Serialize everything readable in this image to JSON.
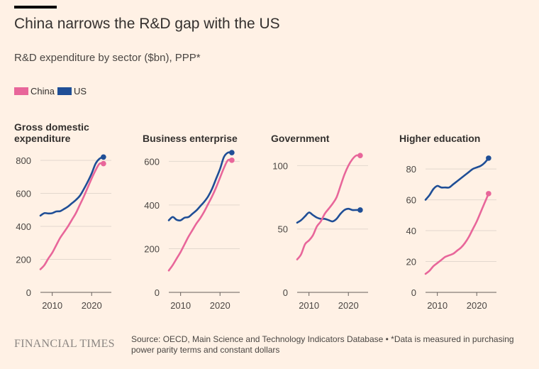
{
  "header": {
    "title": "China narrows the R&D gap with the US",
    "subtitle": "R&D expenditure by sector ($bn), PPP*"
  },
  "legend": [
    {
      "label": "China",
      "color": "#E8669A"
    },
    {
      "label": "US",
      "color": "#1F4E96"
    }
  ],
  "footer": {
    "logo": "FINANCIAL TIMES",
    "source": "Source: OECD, Main Science and Technology Indicators Database • *Data is measured in purchasing power parity terms and constant dollars"
  },
  "chart_data": [
    {
      "type": "line",
      "title": "Gross domestic expenditure",
      "title_lines": [
        "Gross domestic",
        "expenditure"
      ],
      "ylim": [
        0,
        860
      ],
      "yticks": [
        0,
        200,
        400,
        600,
        800
      ],
      "xlim": [
        2007,
        2025
      ],
      "xticks": [
        2010,
        2020
      ],
      "series": [
        {
          "name": "China",
          "color": "#E8669A",
          "x": [
            2007,
            2008,
            2009,
            2010,
            2011,
            2012,
            2013,
            2014,
            2015,
            2016,
            2017,
            2018,
            2019,
            2020,
            2021,
            2022,
            2023
          ],
          "values": [
            140,
            165,
            205,
            240,
            285,
            330,
            365,
            400,
            440,
            480,
            530,
            580,
            635,
            690,
            740,
            780,
            780
          ]
        },
        {
          "name": "US",
          "color": "#1F4E96",
          "x": [
            2007,
            2008,
            2009,
            2010,
            2011,
            2012,
            2013,
            2014,
            2015,
            2016,
            2017,
            2018,
            2019,
            2020,
            2021,
            2022,
            2023
          ],
          "values": [
            465,
            480,
            478,
            480,
            490,
            492,
            505,
            520,
            540,
            560,
            585,
            625,
            670,
            720,
            780,
            810,
            820
          ]
        }
      ]
    },
    {
      "type": "line",
      "title": "Business enterprise",
      "title_lines": [
        "Business enterprise"
      ],
      "ylim": [
        0,
        650
      ],
      "yticks": [
        0,
        200,
        400,
        600
      ],
      "xlim": [
        2007,
        2025
      ],
      "xticks": [
        2010,
        2020
      ],
      "series": [
        {
          "name": "China",
          "color": "#E8669A",
          "x": [
            2007,
            2008,
            2009,
            2010,
            2011,
            2012,
            2013,
            2014,
            2015,
            2016,
            2017,
            2018,
            2019,
            2020,
            2021,
            2022,
            2023
          ],
          "values": [
            100,
            125,
            155,
            185,
            220,
            255,
            285,
            315,
            340,
            370,
            405,
            440,
            480,
            525,
            570,
            605,
            605
          ]
        },
        {
          "name": "US",
          "color": "#1F4E96",
          "x": [
            2007,
            2008,
            2009,
            2010,
            2011,
            2012,
            2013,
            2014,
            2015,
            2016,
            2017,
            2018,
            2019,
            2020,
            2021,
            2022,
            2023
          ],
          "values": [
            330,
            345,
            332,
            330,
            342,
            345,
            360,
            375,
            395,
            415,
            440,
            475,
            520,
            565,
            620,
            640,
            640
          ]
        }
      ]
    },
    {
      "type": "line",
      "title": "Government",
      "title_lines": [
        "Government"
      ],
      "ylim": [
        0,
        112
      ],
      "yticks": [
        0,
        50,
        100
      ],
      "xlim": [
        2007,
        2025
      ],
      "xticks": [
        2010,
        2020
      ],
      "series": [
        {
          "name": "China",
          "color": "#E8669A",
          "x": [
            2007,
            2008,
            2009,
            2010,
            2011,
            2012,
            2013,
            2014,
            2015,
            2016,
            2017,
            2018,
            2019,
            2020,
            2021,
            2022,
            2023
          ],
          "values": [
            26,
            30,
            38,
            41,
            45,
            52,
            56,
            62,
            66,
            70,
            75,
            84,
            93,
            100,
            105,
            108,
            108
          ]
        },
        {
          "name": "US",
          "color": "#1F4E96",
          "x": [
            2007,
            2008,
            2009,
            2010,
            2011,
            2012,
            2013,
            2014,
            2015,
            2016,
            2017,
            2018,
            2019,
            2020,
            2021,
            2022,
            2023
          ],
          "values": [
            55,
            57,
            60,
            63,
            61,
            59,
            58,
            58,
            57,
            56,
            58,
            62,
            65,
            66,
            65,
            65,
            65
          ]
        }
      ]
    },
    {
      "type": "line",
      "title": "Higher education",
      "title_lines": [
        "Higher education"
      ],
      "ylim": [
        0,
        92
      ],
      "yticks": [
        0,
        20,
        40,
        60,
        80
      ],
      "xlim": [
        2007,
        2025
      ],
      "xticks": [
        2010,
        2020
      ],
      "series": [
        {
          "name": "China",
          "color": "#E8669A",
          "x": [
            2007,
            2008,
            2009,
            2010,
            2011,
            2012,
            2013,
            2014,
            2015,
            2016,
            2017,
            2018,
            2019,
            2020,
            2021,
            2022,
            2023
          ],
          "values": [
            12,
            14,
            17,
            19,
            21,
            23,
            24,
            25,
            27,
            29,
            32,
            36,
            41,
            46,
            52,
            58,
            64
          ]
        },
        {
          "name": "US",
          "color": "#1F4E96",
          "x": [
            2007,
            2008,
            2009,
            2010,
            2011,
            2012,
            2013,
            2014,
            2015,
            2016,
            2017,
            2018,
            2019,
            2020,
            2021,
            2022,
            2023
          ],
          "values": [
            60,
            63,
            67,
            69,
            68,
            68,
            68,
            70,
            72,
            74,
            76,
            78,
            80,
            81,
            82,
            84,
            87
          ]
        }
      ]
    }
  ]
}
